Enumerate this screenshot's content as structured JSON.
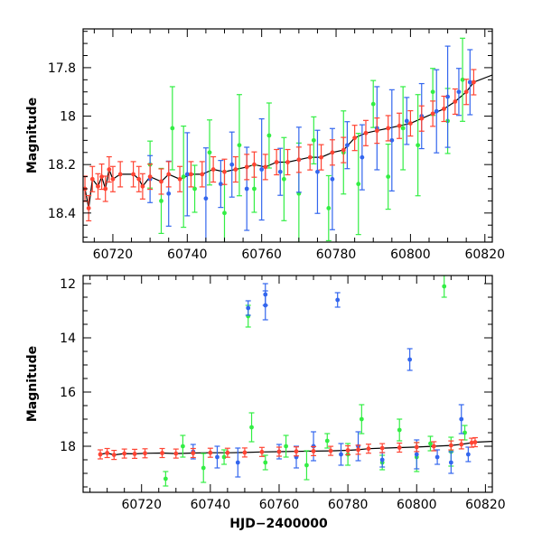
{
  "chart_data": [
    {
      "type": "scatter",
      "title": "",
      "xlabel": "",
      "ylabel": "Magnitude",
      "xlim": [
        60712,
        60822
      ],
      "ylim": [
        18.52,
        17.64
      ],
      "y_inverted": true,
      "x_ticks": [
        60720,
        60740,
        60760,
        60780,
        60800,
        60820
      ],
      "y_ticks": [
        17.8,
        18,
        18.2,
        18.4
      ],
      "series": [
        {
          "color": "#ff4433",
          "points": [
            [
              60712.5,
              18.3
            ],
            [
              60713.5,
              18.38
            ],
            [
              60714.5,
              18.26
            ],
            [
              60716,
              18.29
            ],
            [
              60717,
              18.25
            ],
            [
              60718,
              18.3
            ],
            [
              60719,
              18.22
            ],
            [
              60720,
              18.26
            ],
            [
              60722,
              18.24
            ],
            [
              60725.5,
              18.24
            ],
            [
              60727,
              18.26
            ],
            [
              60728,
              18.29
            ],
            [
              60730,
              18.25
            ],
            [
              60733,
              18.27
            ],
            [
              60735,
              18.24
            ],
            [
              60738,
              18.26
            ],
            [
              60741,
              18.24
            ],
            [
              60744,
              18.24
            ],
            [
              60747,
              18.22
            ],
            [
              60750,
              18.23
            ],
            [
              60753,
              18.22
            ],
            [
              60756,
              18.21
            ],
            [
              60758,
              18.2
            ],
            [
              60761,
              18.21
            ],
            [
              60764,
              18.19
            ],
            [
              60767,
              18.19
            ],
            [
              60770,
              18.18
            ],
            [
              60773,
              18.17
            ],
            [
              60776,
              18.17
            ],
            [
              60779,
              18.15
            ],
            [
              60782,
              18.14
            ],
            [
              60785,
              18.09
            ],
            [
              60788,
              18.07
            ],
            [
              60791,
              18.06
            ],
            [
              60794,
              18.05
            ],
            [
              60797,
              18.04
            ],
            [
              60800,
              18.03
            ],
            [
              60803,
              18.01
            ],
            [
              60806,
              17.99
            ],
            [
              60809,
              17.97
            ],
            [
              60812,
              17.94
            ],
            [
              60815,
              17.9
            ],
            [
              60817,
              17.86
            ]
          ]
        },
        {
          "color": "#3366ee",
          "points": [
            [
              60730,
              18.26
            ],
            [
              60735,
              18.32
            ],
            [
              60740,
              18.24
            ],
            [
              60745,
              18.34
            ],
            [
              60749,
              18.28
            ],
            [
              60752,
              18.2
            ],
            [
              60756,
              18.3
            ],
            [
              60760,
              18.22
            ],
            [
              60765,
              18.23
            ],
            [
              60770,
              18.18
            ],
            [
              60775,
              18.23
            ],
            [
              60779,
              18.26
            ],
            [
              60783,
              18.12
            ],
            [
              60787,
              18.17
            ],
            [
              60791,
              18.05
            ],
            [
              60795,
              18.1
            ],
            [
              60799,
              18.02
            ],
            [
              60803,
              18.0
            ],
            [
              60807,
              17.98
            ],
            [
              60810,
              17.92
            ],
            [
              60813,
              17.9
            ],
            [
              60816,
              17.86
            ]
          ]
        },
        {
          "color": "#33ee44",
          "points": [
            [
              60730,
              18.2
            ],
            [
              60733,
              18.35
            ],
            [
              60736,
              18.05
            ],
            [
              60739,
              18.25
            ],
            [
              60742,
              18.3
            ],
            [
              60746,
              18.15
            ],
            [
              60750,
              18.4
            ],
            [
              60754,
              18.12
            ],
            [
              60758,
              18.3
            ],
            [
              60762,
              18.08
            ],
            [
              60766,
              18.26
            ],
            [
              60770,
              18.32
            ],
            [
              60774,
              18.1
            ],
            [
              60778,
              18.38
            ],
            [
              60782,
              18.15
            ],
            [
              60786,
              18.28
            ],
            [
              60790,
              17.95
            ],
            [
              60794,
              18.25
            ],
            [
              60798,
              18.05
            ],
            [
              60802,
              18.12
            ],
            [
              60806,
              17.9
            ],
            [
              60810,
              18.02
            ],
            [
              60814,
              17.85
            ]
          ]
        }
      ]
    },
    {
      "type": "scatter",
      "title": "",
      "xlabel": "HJD−2400000",
      "ylabel": "Magnitude",
      "xlim": [
        60703,
        60822
      ],
      "ylim": [
        19.7,
        11.7
      ],
      "y_inverted": true,
      "x_ticks": [
        60720,
        60740,
        60760,
        60780,
        60800,
        60820
      ],
      "y_ticks": [
        12,
        14,
        16,
        18
      ],
      "series": [
        {
          "color": "#ff4433",
          "points": [
            [
              60708,
              18.3
            ],
            [
              60710,
              18.25
            ],
            [
              60712,
              18.32
            ],
            [
              60715,
              18.27
            ],
            [
              60718,
              18.28
            ],
            [
              60721,
              18.26
            ],
            [
              60726,
              18.25
            ],
            [
              60730,
              18.27
            ],
            [
              60735,
              18.25
            ],
            [
              60740,
              18.24
            ],
            [
              60745,
              18.24
            ],
            [
              60750,
              18.23
            ],
            [
              60755,
              18.21
            ],
            [
              60760,
              18.2
            ],
            [
              60765,
              18.19
            ],
            [
              60770,
              18.18
            ],
            [
              60775,
              18.17
            ],
            [
              60780,
              18.15
            ],
            [
              60783,
              18.13
            ],
            [
              60786,
              18.09
            ],
            [
              60790,
              18.07
            ],
            [
              60795,
              18.05
            ],
            [
              60800,
              18.03
            ],
            [
              60805,
              18.0
            ],
            [
              60810,
              17.97
            ],
            [
              60813,
              17.93
            ],
            [
              60816,
              17.87
            ],
            [
              60817,
              17.85
            ]
          ]
        },
        {
          "color": "#3366ee",
          "points": [
            [
              60735,
              18.2
            ],
            [
              60742,
              18.4
            ],
            [
              60748,
              18.6
            ],
            [
              60751,
              12.9
            ],
            [
              60756,
              12.4
            ],
            [
              60756,
              12.8
            ],
            [
              60760,
              18.2
            ],
            [
              60765,
              18.4
            ],
            [
              60770,
              18.0
            ],
            [
              60777,
              12.6
            ],
            [
              60778,
              18.3
            ],
            [
              60783,
              18.0
            ],
            [
              60790,
              18.5
            ],
            [
              60798,
              14.8
            ],
            [
              60800,
              18.3
            ],
            [
              60806,
              18.4
            ],
            [
              60810,
              18.6
            ],
            [
              60813,
              17.0
            ],
            [
              60815,
              18.3
            ]
          ]
        },
        {
          "color": "#33ee44",
          "points": [
            [
              60727,
              19.2
            ],
            [
              60732,
              18.0
            ],
            [
              60738,
              18.8
            ],
            [
              60744,
              18.4
            ],
            [
              60751,
              13.2
            ],
            [
              60752,
              17.3
            ],
            [
              60756,
              18.6
            ],
            [
              60762,
              18.0
            ],
            [
              60768,
              18.7
            ],
            [
              60774,
              17.8
            ],
            [
              60780,
              18.3
            ],
            [
              60784,
              17.0
            ],
            [
              60790,
              18.6
            ],
            [
              60795,
              17.4
            ],
            [
              60800,
              18.4
            ],
            [
              60804,
              17.9
            ],
            [
              60808,
              12.1
            ],
            [
              60810,
              18.2
            ],
            [
              60814,
              17.5
            ]
          ]
        }
      ]
    }
  ]
}
